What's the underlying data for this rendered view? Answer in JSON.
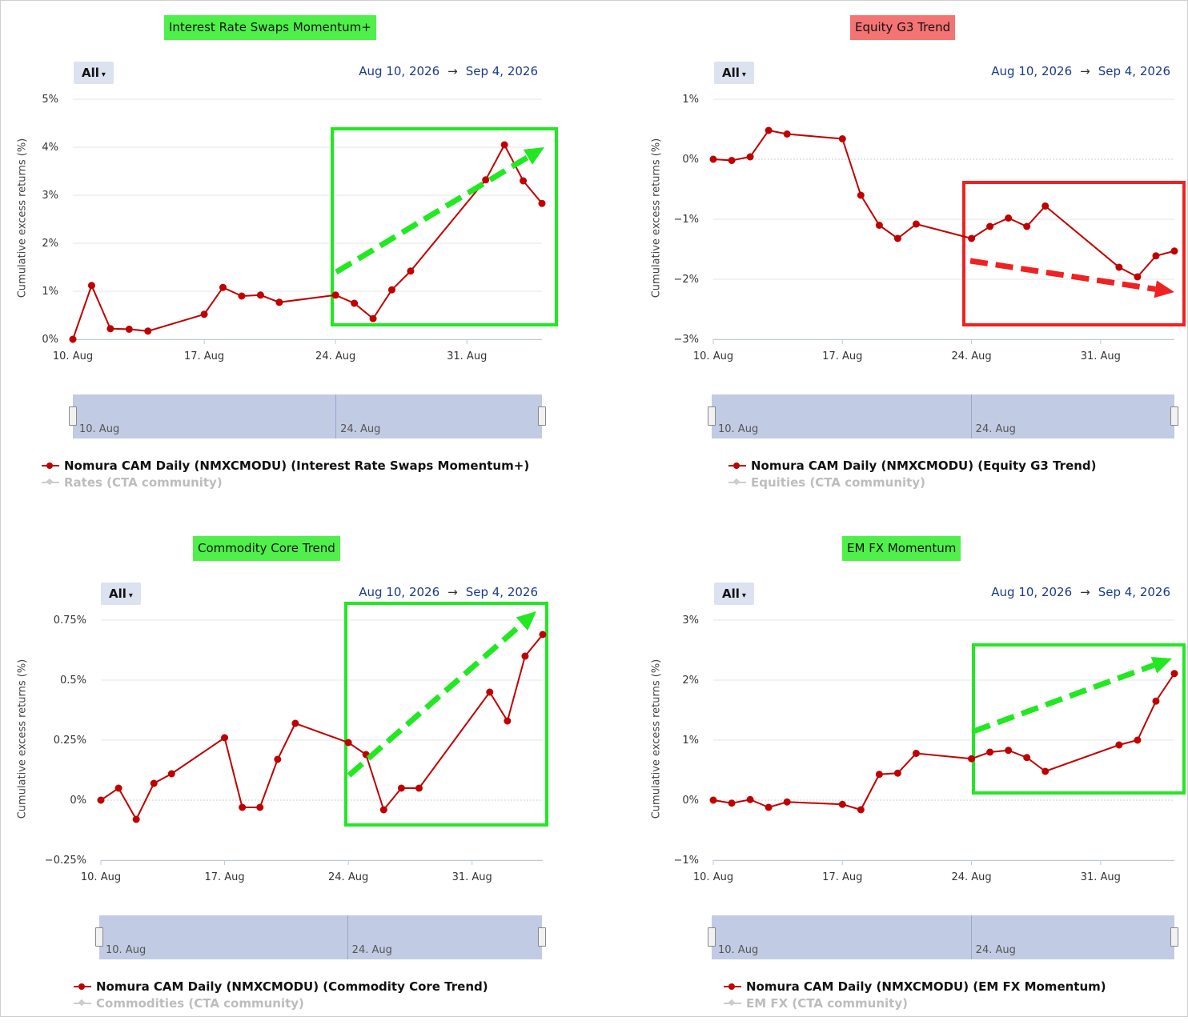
{
  "colors": {
    "series": "#c00000",
    "community": "#cccccc",
    "badge_green": "#4ff04a",
    "badge_red": "#f47474",
    "box_green": "#22e822",
    "box_red": "#ee2222",
    "date_blue": "#1a3a8c",
    "navigator": "#c1cbe3"
  },
  "chart_data": [
    {
      "type": "line",
      "title": "Interest Rate Swaps Momentum+",
      "title_color": "green",
      "range_button": "All",
      "date_from": "Aug 10, 2026",
      "date_to": "Sep 4, 2026",
      "ylabel": "Cumulative excess returns (%)",
      "xlabel": "",
      "x_ticks": [
        "10. Aug",
        "17. Aug",
        "24. Aug",
        "31. Aug"
      ],
      "y_ticks": [
        "0%",
        "1%",
        "2%",
        "3%",
        "4%",
        "5%"
      ],
      "ylim": [
        0,
        5
      ],
      "y_step": 1,
      "grid": true,
      "navigator_labels": [
        "10. Aug",
        "24. Aug"
      ],
      "annotation": {
        "box": "green",
        "trend_arrow": "up"
      },
      "series": [
        {
          "name": "Nomura CAM Daily (NMXCMODU) (Interest Rate Swaps Momentum+)",
          "x": [
            "2026-08-10",
            "2026-08-11",
            "2026-08-12",
            "2026-08-13",
            "2026-08-14",
            "2026-08-17",
            "2026-08-18",
            "2026-08-19",
            "2026-08-20",
            "2026-08-21",
            "2026-08-24",
            "2026-08-25",
            "2026-08-26",
            "2026-08-27",
            "2026-08-28",
            "2026-09-01",
            "2026-09-02",
            "2026-09-03",
            "2026-09-04"
          ],
          "values": [
            0.0,
            1.12,
            0.22,
            0.21,
            0.17,
            0.52,
            1.08,
            0.9,
            0.92,
            0.77,
            0.92,
            0.75,
            0.43,
            1.03,
            1.42,
            3.32,
            4.05,
            3.3,
            2.83
          ]
        },
        {
          "name": "Rates (CTA community)",
          "x": [],
          "values": []
        }
      ]
    },
    {
      "type": "line",
      "title": "Equity G3 Trend",
      "title_color": "red",
      "range_button": "All",
      "date_from": "Aug 10, 2026",
      "date_to": "Sep 4, 2026",
      "ylabel": "Cumulative excess returns (%)",
      "xlabel": "",
      "x_ticks": [
        "10. Aug",
        "17. Aug",
        "24. Aug",
        "31. Aug"
      ],
      "y_ticks": [
        "−3%",
        "−2%",
        "−1%",
        "0%",
        "1%"
      ],
      "ylim": [
        -3,
        1
      ],
      "y_step": 1,
      "grid": true,
      "navigator_labels": [
        "10. Aug",
        "24. Aug"
      ],
      "annotation": {
        "box": "red",
        "trend_arrow": "down"
      },
      "series": [
        {
          "name": "Nomura CAM Daily (NMXCMODU) (Equity G3 Trend)",
          "x": [
            "2026-08-10",
            "2026-08-11",
            "2026-08-12",
            "2026-08-13",
            "2026-08-14",
            "2026-08-17",
            "2026-08-18",
            "2026-08-19",
            "2026-08-20",
            "2026-08-21",
            "2026-08-24",
            "2026-08-25",
            "2026-08-26",
            "2026-08-27",
            "2026-08-28",
            "2026-09-01",
            "2026-09-02",
            "2026-09-03",
            "2026-09-04"
          ],
          "values": [
            0.0,
            -0.02,
            0.04,
            0.48,
            0.42,
            0.34,
            -0.6,
            -1.1,
            -1.32,
            -1.08,
            -1.32,
            -1.12,
            -0.98,
            -1.12,
            -0.78,
            -1.8,
            -1.96,
            -1.61,
            -1.53
          ]
        },
        {
          "name": "Equities (CTA community)",
          "x": [],
          "values": []
        }
      ]
    },
    {
      "type": "line",
      "title": "Commodity Core Trend",
      "title_color": "green",
      "range_button": "All",
      "date_from": "Aug 10, 2026",
      "date_to": "Sep 4, 2026",
      "ylabel": "Cumulative excess returns (%)",
      "xlabel": "",
      "x_ticks": [
        "10. Aug",
        "17. Aug",
        "24. Aug",
        "31. Aug"
      ],
      "y_ticks": [
        "−0.25%",
        "0%",
        "0.25%",
        "0.5%",
        "0.75%"
      ],
      "ylim": [
        -0.25,
        0.75
      ],
      "y_step": 0.25,
      "grid": true,
      "navigator_labels": [
        "10. Aug",
        "24. Aug"
      ],
      "annotation": {
        "box": "green",
        "trend_arrow": "up"
      },
      "series": [
        {
          "name": "Nomura CAM Daily (NMXCMODU) (Commodity Core Trend)",
          "x": [
            "2026-08-10",
            "2026-08-11",
            "2026-08-12",
            "2026-08-13",
            "2026-08-14",
            "2026-08-17",
            "2026-08-18",
            "2026-08-19",
            "2026-08-20",
            "2026-08-21",
            "2026-08-24",
            "2026-08-25",
            "2026-08-26",
            "2026-08-27",
            "2026-08-28",
            "2026-09-01",
            "2026-09-02",
            "2026-09-03",
            "2026-09-04"
          ],
          "values": [
            0.0,
            0.05,
            -0.08,
            0.07,
            0.11,
            0.26,
            -0.03,
            -0.03,
            0.17,
            0.32,
            0.24,
            0.19,
            -0.04,
            0.05,
            0.05,
            0.45,
            0.33,
            0.6,
            0.69
          ]
        },
        {
          "name": "Commodities (CTA community)",
          "x": [],
          "values": []
        }
      ]
    },
    {
      "type": "line",
      "title": "EM FX Momentum",
      "title_color": "green",
      "range_button": "All",
      "date_from": "Aug 10, 2026",
      "date_to": "Sep 4, 2026",
      "ylabel": "Cumulative excess returns (%)",
      "xlabel": "",
      "x_ticks": [
        "10. Aug",
        "17. Aug",
        "24. Aug",
        "31. Aug"
      ],
      "y_ticks": [
        "−1%",
        "0%",
        "1%",
        "2%",
        "3%"
      ],
      "ylim": [
        -1,
        3
      ],
      "y_step": 1,
      "grid": true,
      "navigator_labels": [
        "10. Aug",
        "24. Aug"
      ],
      "annotation": {
        "box": "green",
        "trend_arrow": "up"
      },
      "series": [
        {
          "name": "Nomura CAM Daily (NMXCMODU) (EM FX Momentum)",
          "x": [
            "2026-08-10",
            "2026-08-11",
            "2026-08-12",
            "2026-08-13",
            "2026-08-14",
            "2026-08-17",
            "2026-08-18",
            "2026-08-19",
            "2026-08-20",
            "2026-08-21",
            "2026-08-24",
            "2026-08-25",
            "2026-08-26",
            "2026-08-27",
            "2026-08-28",
            "2026-09-01",
            "2026-09-02",
            "2026-09-03",
            "2026-09-04"
          ],
          "values": [
            0.0,
            -0.05,
            0.01,
            -0.12,
            -0.03,
            -0.07,
            -0.16,
            0.43,
            0.45,
            0.78,
            0.69,
            0.8,
            0.83,
            0.71,
            0.48,
            0.92,
            1.0,
            1.65,
            2.11
          ]
        },
        {
          "name": "EM FX (CTA community)",
          "x": [],
          "values": []
        }
      ]
    }
  ]
}
